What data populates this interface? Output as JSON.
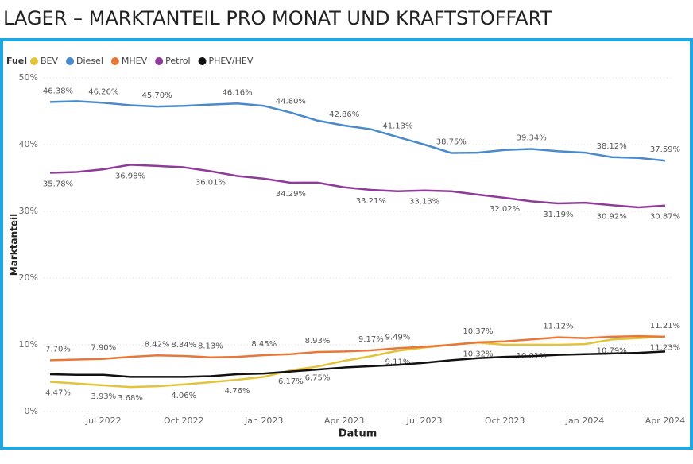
{
  "chart_data": {
    "type": "line",
    "title": "LAGER – MARKTANTEIL PRO MONAT UND KRAFTSTOFFART",
    "legend_title": "Fuel",
    "x_label": "Datum",
    "y_label": "Marktanteil",
    "categories": [
      null,
      null,
      "Jul 2022",
      null,
      null,
      "Oct 2022",
      null,
      null,
      "Jan 2023",
      null,
      null,
      "Apr 2023",
      null,
      null,
      "Jul 2023",
      null,
      null,
      "Oct 2023",
      null,
      null,
      "Jan 2024",
      null,
      null,
      "Apr 2024"
    ],
    "ylim": [
      0,
      50
    ],
    "yticks": [
      {
        "value": 0,
        "label": "0%"
      },
      {
        "value": 10,
        "label": "10%"
      },
      {
        "value": 20,
        "label": "20%"
      },
      {
        "value": 30,
        "label": "30%"
      },
      {
        "value": 40,
        "label": "40%"
      },
      {
        "value": 50,
        "label": "50%"
      }
    ],
    "grid": true,
    "legend": "top-left",
    "series": [
      {
        "name": "BEV",
        "color": "#e3c339",
        "values": [
          4.47,
          4.2,
          3.93,
          3.68,
          3.8,
          4.06,
          4.4,
          4.76,
          5.2,
          6.17,
          6.75,
          7.6,
          8.3,
          9.11,
          9.6,
          10.0,
          10.32,
          10.0,
          10.01,
          10.0,
          10.1,
          10.79,
          11.0,
          11.23
        ],
        "value_labels": [
          "4.47%",
          null,
          "3.93%",
          "3.68%",
          null,
          "4.06%",
          null,
          "4.76%",
          null,
          "6.17%",
          "6.75%",
          null,
          null,
          "9.11%",
          null,
          null,
          "10.32%",
          null,
          "10.01%",
          null,
          null,
          "10.79%",
          null,
          "11.23%"
        ]
      },
      {
        "name": "Diesel",
        "color": "#4a8acb",
        "values": [
          46.38,
          46.5,
          46.26,
          45.9,
          45.7,
          45.8,
          46.0,
          46.16,
          45.8,
          44.8,
          43.6,
          42.86,
          42.3,
          41.13,
          40.0,
          38.75,
          38.8,
          39.2,
          39.34,
          39.0,
          38.8,
          38.12,
          38.0,
          37.59
        ],
        "value_labels": [
          "46.38%",
          null,
          "46.26%",
          null,
          "45.70%",
          null,
          null,
          "46.16%",
          null,
          "44.80%",
          null,
          "42.86%",
          null,
          "41.13%",
          null,
          "38.75%",
          null,
          null,
          "39.34%",
          null,
          null,
          "38.12%",
          null,
          "37.59%"
        ]
      },
      {
        "name": "MHEV",
        "color": "#e8773a",
        "values": [
          7.7,
          7.8,
          7.9,
          8.2,
          8.42,
          8.34,
          8.13,
          8.2,
          8.45,
          8.6,
          8.93,
          9.0,
          9.17,
          9.49,
          9.7,
          10.0,
          10.37,
          10.5,
          10.8,
          11.12,
          11.0,
          11.2,
          11.3,
          11.21
        ],
        "value_labels": [
          "7.70%",
          null,
          "7.90%",
          null,
          "8.42%",
          "8.34%",
          "8.13%",
          null,
          "8.45%",
          null,
          "8.93%",
          null,
          "9.17%",
          "9.49%",
          null,
          null,
          "10.37%",
          null,
          null,
          "11.12%",
          null,
          null,
          null,
          "11.21%"
        ]
      },
      {
        "name": "Petrol",
        "color": "#8e3b9a",
        "values": [
          35.78,
          35.9,
          36.3,
          36.98,
          36.8,
          36.6,
          36.01,
          35.3,
          34.9,
          34.29,
          34.3,
          33.6,
          33.21,
          33.0,
          33.13,
          33.0,
          32.5,
          32.02,
          31.5,
          31.19,
          31.3,
          30.92,
          30.6,
          30.87
        ],
        "value_labels": [
          "35.78%",
          null,
          null,
          "36.98%",
          null,
          null,
          "36.01%",
          null,
          null,
          "34.29%",
          null,
          null,
          "33.21%",
          null,
          "33.13%",
          null,
          null,
          "32.02%",
          null,
          "31.19%",
          null,
          "30.92%",
          null,
          "30.87%"
        ]
      },
      {
        "name": "PHEV/HEV",
        "color": "#111111",
        "values": [
          5.6,
          5.5,
          5.5,
          5.2,
          5.2,
          5.2,
          5.3,
          5.6,
          5.7,
          6.0,
          6.3,
          6.6,
          6.8,
          7.0,
          7.3,
          7.7,
          8.0,
          8.2,
          8.3,
          8.5,
          8.6,
          8.7,
          8.8,
          9.0
        ]
      }
    ]
  }
}
